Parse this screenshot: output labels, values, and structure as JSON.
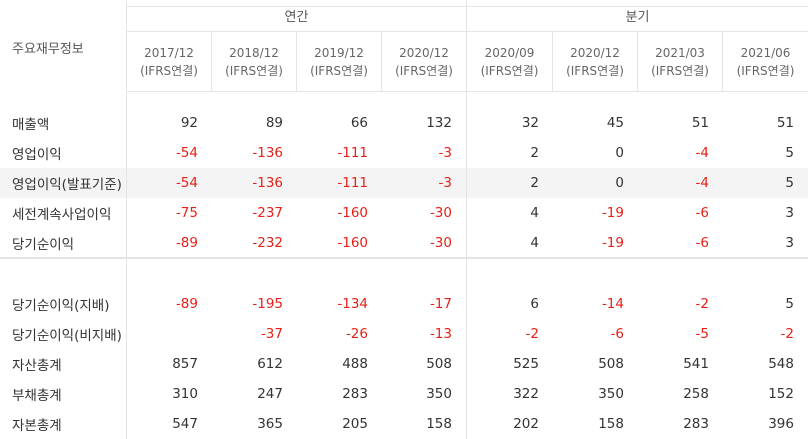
{
  "header": {
    "title": "주요재무정보",
    "group_annual": "연간",
    "group_quarter": "분기",
    "columns": [
      {
        "period": "2017/12",
        "basis": "(IFRS연결)"
      },
      {
        "period": "2018/12",
        "basis": "(IFRS연결)"
      },
      {
        "period": "2019/12",
        "basis": "(IFRS연결)"
      },
      {
        "period": "2020/12",
        "basis": "(IFRS연결)"
      },
      {
        "period": "2020/09",
        "basis": "(IFRS연결)"
      },
      {
        "period": "2020/12",
        "basis": "(IFRS연결)"
      },
      {
        "period": "2021/03",
        "basis": "(IFRS연결)"
      },
      {
        "period": "2021/06",
        "basis": "(IFRS연결)"
      }
    ]
  },
  "rows": [
    {
      "label": "매출액",
      "values": [
        "92",
        "89",
        "66",
        "132",
        "32",
        "45",
        "51",
        "51"
      ]
    },
    {
      "label": "영업이익",
      "values": [
        "-54",
        "-136",
        "-111",
        "-3",
        "2",
        "0",
        "-4",
        "5"
      ]
    },
    {
      "label": "영업이익(발표기준)",
      "values": [
        "-54",
        "-136",
        "-111",
        "-3",
        "2",
        "0",
        "-4",
        "5"
      ]
    },
    {
      "label": "세전계속사업이익",
      "values": [
        "-75",
        "-237",
        "-160",
        "-30",
        "4",
        "-19",
        "-6",
        "3"
      ]
    },
    {
      "label": "당기순이익",
      "values": [
        "-89",
        "-232",
        "-160",
        "-30",
        "4",
        "-19",
        "-6",
        "3"
      ]
    },
    {
      "label": "당기순이익(지배)",
      "values": [
        "-89",
        "-195",
        "-134",
        "-17",
        "6",
        "-14",
        "-2",
        "5"
      ]
    },
    {
      "label": "당기순이익(비지배)",
      "values": [
        "",
        "-37",
        "-26",
        "-13",
        "-2",
        "-6",
        "-5",
        "-2"
      ]
    },
    {
      "label": "자산총계",
      "values": [
        "857",
        "612",
        "488",
        "508",
        "525",
        "508",
        "541",
        "548"
      ]
    },
    {
      "label": "부채총계",
      "values": [
        "310",
        "247",
        "283",
        "350",
        "322",
        "350",
        "258",
        "152"
      ]
    },
    {
      "label": "자본총계",
      "values": [
        "547",
        "365",
        "205",
        "158",
        "202",
        "158",
        "283",
        "396"
      ]
    }
  ],
  "colors": {
    "negative": "#e62117",
    "highlight_row": "#f4f4f4"
  }
}
